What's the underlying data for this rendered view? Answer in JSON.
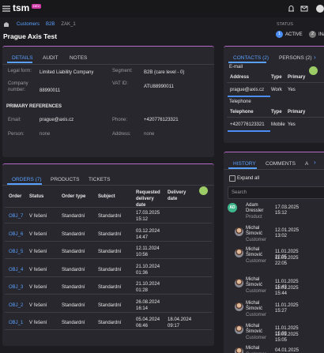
{
  "header": {
    "logo": "tsm",
    "badge": "DEV"
  },
  "breadcrumb": [
    "Customers",
    "B2B",
    "ZAK_1"
  ],
  "page_title": "Prague Axis Test",
  "status": {
    "label": "STATUS",
    "steps": [
      {
        "number": "1",
        "label": "ACTIVE"
      },
      {
        "number": "2",
        "label": "INACTIVE"
      }
    ]
  },
  "details": {
    "tabs": [
      "DETAILS",
      "AUDIT",
      "NOTES"
    ],
    "fields": [
      {
        "label": "Legal form:",
        "value": "Limited Liability Company"
      },
      {
        "label": "Segment:",
        "value": "B2B (care level - 0)"
      },
      {
        "label": "Company number:",
        "value": "88990011"
      },
      {
        "label": "VAT ID:",
        "value": "ATU88990011"
      }
    ],
    "section": "PRIMARY REFERENCES",
    "references": [
      {
        "label": "Email:",
        "value": "prague@axis.cz"
      },
      {
        "label": "Phone:",
        "value": "+420776123321"
      },
      {
        "label": "Person:",
        "value": "none"
      },
      {
        "label": "Address:",
        "value": "none"
      }
    ]
  },
  "contacts": {
    "tabs": [
      "CONTACTS (2)",
      "PERSONS (2)"
    ],
    "email": {
      "title": "E-mail",
      "columns": [
        "Address",
        "Type",
        "Primary"
      ],
      "rows": [
        [
          "prague@axis.cz",
          "Work",
          "Yes"
        ]
      ]
    },
    "telephone": {
      "title": "Telephone",
      "columns": [
        "Telephone",
        "Type",
        "Primary"
      ],
      "rows": [
        [
          "+420776123321",
          "Mobile",
          "Yes"
        ]
      ]
    }
  },
  "orders": {
    "tabs": [
      "ORDERS (7)",
      "PRODUCTS",
      "TICKETS"
    ],
    "columns": [
      "Order",
      "Status",
      "Order type",
      "Subject",
      "Requested delivery date",
      "Delivery date"
    ],
    "rows": [
      [
        "OBJ_7",
        "V řešení",
        "Standardní",
        "Standardní",
        "17.03.2025 15:12",
        null
      ],
      [
        "OBJ_6",
        "V řešení",
        "Standardní",
        "Standardní",
        "03.12.2024 14:47",
        null
      ],
      [
        "OBJ_5",
        "V řešení",
        "Standardní",
        "Standardní",
        "12.11.2024 10:56",
        null
      ],
      [
        "OBJ_4",
        "V řešení",
        "Standardní",
        "Standardní",
        "21.10.2024 01:36",
        null
      ],
      [
        "OBJ_3",
        "V řešení",
        "Standardní",
        "Standardní",
        "21.10.2024 01:28",
        null
      ],
      [
        "OBJ_2",
        "V řešení",
        "Standardní",
        "Standardní",
        "26.08.2024 16:14",
        null
      ],
      [
        "OBJ_1",
        "V řešení",
        "Standardní",
        "Standardní",
        "05.04.2024 06:46",
        "18.04.2024 09:17"
      ]
    ]
  },
  "history": {
    "tabs": [
      "HISTORY",
      "COMMENTS",
      "A"
    ],
    "expand": "Expand all",
    "search": "Search",
    "entries": [
      {
        "initials": "AD",
        "name": "Adam Dressler",
        "role": "Product",
        "times": [
          "17.03.2025 15:12"
        ]
      },
      {
        "name": "Michal Šimović",
        "role": "Customer",
        "times": [
          "12.01.2025 13:02"
        ]
      },
      {
        "name": "Michal Šimović",
        "role": "Customer",
        "times": [
          "11.01.2025 22:05",
          "11.01.2025 22:05"
        ]
      },
      {
        "name": "Michal Šimović",
        "role": "Customer",
        "times": [
          "11.01.2025 15:43",
          "11.01.2025 15:44"
        ]
      },
      {
        "name": "Michal Šimović",
        "role": "Customer",
        "times": [
          "11.01.2025 15:27"
        ]
      },
      {
        "name": "Michal Šimović",
        "role": "Customer",
        "times": [
          "11.01.2025 15:03",
          "11.01.2025 15:05"
        ]
      },
      {
        "name": "Michal",
        "role": "Customer",
        "times": [
          "04.01.2025"
        ]
      }
    ]
  }
}
